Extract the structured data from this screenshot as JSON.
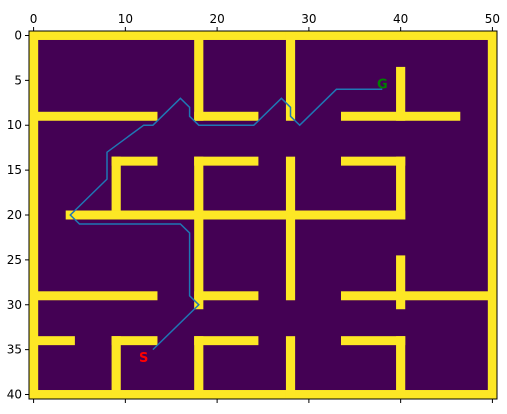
{
  "chart_data": {
    "type": "heatmap",
    "title": "",
    "xlabel": "",
    "ylabel": "",
    "xlim": [
      -0.5,
      50.5
    ],
    "ylim": [
      40.5,
      -0.5
    ],
    "x_ticks": [
      0,
      10,
      20,
      30,
      40,
      50
    ],
    "y_ticks": [
      0,
      5,
      10,
      15,
      20,
      25,
      30,
      35,
      40
    ],
    "grid": false,
    "colors": {
      "open": "#440154",
      "wall": "#fde725",
      "path": "#1f77b4",
      "start": "#ff0000",
      "goal": "#008000"
    },
    "walls": [
      {
        "x0": 0,
        "x1": 50,
        "y0": 0,
        "y1": 0
      },
      {
        "x0": 0,
        "x1": 50,
        "y0": 40,
        "y1": 40
      },
      {
        "x0": 0,
        "x1": 0,
        "y0": 0,
        "y1": 40
      },
      {
        "x0": 50,
        "x1": 50,
        "y0": 0,
        "y1": 40
      },
      {
        "x0": 18,
        "x1": 18,
        "y0": 0,
        "y1": 9
      },
      {
        "x0": 28,
        "x1": 28,
        "y0": 0,
        "y1": 9
      },
      {
        "x0": 0,
        "x1": 13,
        "y0": 9,
        "y1": 9
      },
      {
        "x0": 18,
        "x1": 24,
        "y0": 9,
        "y1": 9
      },
      {
        "x0": 34,
        "x1": 46,
        "y0": 9,
        "y1": 9
      },
      {
        "x0": 40,
        "x1": 40,
        "y0": 4,
        "y1": 9
      },
      {
        "x0": 9,
        "x1": 13,
        "y0": 14,
        "y1": 14
      },
      {
        "x0": 9,
        "x1": 9,
        "y0": 14,
        "y1": 19
      },
      {
        "x0": 18,
        "x1": 24,
        "y0": 14,
        "y1": 14
      },
      {
        "x0": 18,
        "x1": 18,
        "y0": 14,
        "y1": 30
      },
      {
        "x0": 28,
        "x1": 28,
        "y0": 14,
        "y1": 29
      },
      {
        "x0": 34,
        "x1": 40,
        "y0": 14,
        "y1": 14
      },
      {
        "x0": 40,
        "x1": 40,
        "y0": 14,
        "y1": 20
      },
      {
        "x0": 4,
        "x1": 40,
        "y0": 20,
        "y1": 20
      },
      {
        "x0": 40,
        "x1": 40,
        "y0": 25,
        "y1": 30
      },
      {
        "x0": 0,
        "x1": 13,
        "y0": 29,
        "y1": 29
      },
      {
        "x0": 18,
        "x1": 24,
        "y0": 29,
        "y1": 29
      },
      {
        "x0": 34,
        "x1": 50,
        "y0": 29,
        "y1": 29
      },
      {
        "x0": 0,
        "x1": 4,
        "y0": 34,
        "y1": 34
      },
      {
        "x0": 9,
        "x1": 13,
        "y0": 34,
        "y1": 34
      },
      {
        "x0": 9,
        "x1": 9,
        "y0": 34,
        "y1": 40
      },
      {
        "x0": 18,
        "x1": 24,
        "y0": 34,
        "y1": 34
      },
      {
        "x0": 18,
        "x1": 18,
        "y0": 34,
        "y1": 40
      },
      {
        "x0": 28,
        "x1": 28,
        "y0": 34,
        "y1": 40
      },
      {
        "x0": 34,
        "x1": 40,
        "y0": 34,
        "y1": 34
      },
      {
        "x0": 40,
        "x1": 40,
        "y0": 34,
        "y1": 40
      }
    ],
    "path": [
      [
        13,
        35
      ],
      [
        18,
        30
      ],
      [
        17,
        29
      ],
      [
        17,
        22
      ],
      [
        16,
        21
      ],
      [
        5,
        21
      ],
      [
        4,
        20
      ],
      [
        8,
        16
      ],
      [
        8,
        13
      ],
      [
        12,
        10
      ],
      [
        13,
        10
      ],
      [
        16,
        7
      ],
      [
        17,
        8
      ],
      [
        17,
        9
      ],
      [
        18,
        10
      ],
      [
        24,
        10
      ],
      [
        27,
        7
      ],
      [
        28,
        8
      ],
      [
        28,
        9
      ],
      [
        29,
        10
      ],
      [
        33,
        6
      ],
      [
        38,
        6
      ]
    ],
    "start": {
      "label": "S",
      "x": 12,
      "y": 36
    },
    "goal": {
      "label": "G",
      "x": 38,
      "y": 5.5
    }
  }
}
